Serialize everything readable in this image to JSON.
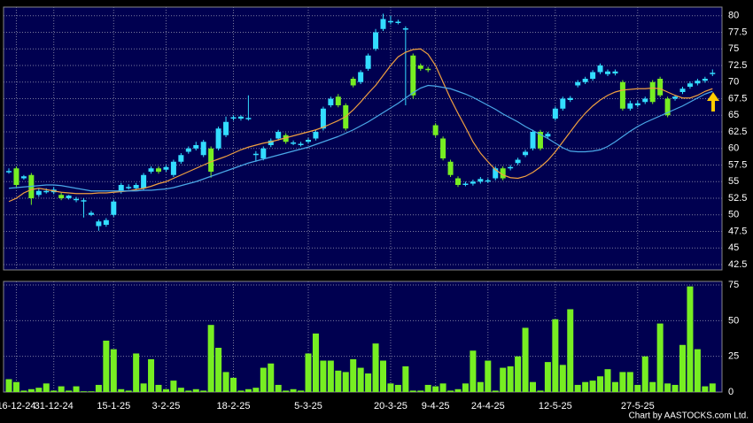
{
  "chart_data": [
    {
      "type": "candlestick",
      "categories": [
        null,
        "16-12-24",
        null,
        null,
        null,
        null,
        "31-12-24",
        null,
        null,
        null,
        null,
        null,
        null,
        null,
        "15-1-25",
        null,
        null,
        null,
        null,
        null,
        null,
        "3-2-25",
        null,
        null,
        null,
        null,
        null,
        null,
        null,
        null,
        "18-2-25",
        null,
        null,
        null,
        null,
        null,
        null,
        null,
        null,
        null,
        "5-3-25",
        null,
        null,
        null,
        null,
        null,
        null,
        null,
        null,
        null,
        null,
        "20-3-25",
        null,
        null,
        null,
        null,
        null,
        "9-4-25",
        null,
        null,
        null,
        null,
        null,
        null,
        "24-4-25",
        null,
        null,
        null,
        null,
        null,
        null,
        null,
        null,
        "12-5-25",
        null,
        null,
        null,
        null,
        null,
        null,
        null,
        null,
        null,
        null,
        "27-5-25",
        null,
        null,
        null,
        null,
        null,
        null,
        null,
        null,
        null,
        null
      ],
      "open": [
        56.5,
        57,
        55.5,
        56,
        53,
        53.4,
        53.4,
        53,
        52.5,
        52.2,
        52,
        50,
        48.3,
        48.5,
        50,
        53.5,
        54,
        54,
        54,
        56.5,
        57,
        56.8,
        56,
        58,
        59.5,
        60,
        59,
        60,
        60,
        62,
        64.5,
        64.5,
        64.5,
        59,
        58.5,
        60.5,
        61.5,
        62,
        60.8,
        60.5,
        61,
        61.5,
        63,
        66.5,
        67.8,
        66.5,
        70.5,
        70,
        72,
        75,
        78,
        79,
        79,
        78,
        74,
        72.5,
        72,
        63.5,
        61.5,
        58,
        55.5,
        54.5,
        54.7,
        55,
        55,
        55.5,
        57,
        57,
        57.8,
        59,
        60,
        62.5,
        61.8,
        64.5,
        66,
        67.3,
        69.5,
        70,
        70.5,
        71.5,
        71.2,
        71.3,
        70,
        66,
        66.5,
        67,
        70,
        70.5,
        67.5,
        67.5,
        68.5,
        69.3,
        69.8,
        70.2,
        71.2
      ],
      "high": [
        57,
        57.3,
        56,
        56.3,
        54,
        54,
        54.2,
        53.3,
        53,
        52.7,
        52.5,
        50.6,
        49.3,
        49.5,
        52.3,
        54.8,
        54.6,
        54.8,
        56.3,
        57.3,
        57.3,
        57.5,
        58.3,
        59.3,
        60.3,
        61,
        61.3,
        60.3,
        63.3,
        64.8,
        65,
        65,
        68,
        59.6,
        60.3,
        61.5,
        62.8,
        62.3,
        61.2,
        61,
        61.6,
        62.8,
        66.3,
        67.8,
        68.2,
        66.8,
        70.8,
        71.8,
        74.3,
        78,
        80.3,
        80,
        79.4,
        78.4,
        74.3,
        72.8,
        72.3,
        63.8,
        61.8,
        58.3,
        55.8,
        55,
        55.3,
        55.7,
        55.5,
        57.3,
        57.3,
        57.5,
        58.6,
        59.8,
        62.8,
        62.8,
        62.5,
        66.3,
        67.8,
        67.9,
        70.3,
        70.8,
        71.8,
        72.8,
        71.9,
        71.9,
        70.3,
        67.2,
        67.2,
        67.8,
        70.3,
        70.8,
        67.8,
        68,
        69.3,
        70.1,
        70.5,
        70.8,
        71.9
      ],
      "low": [
        56.2,
        54.2,
        55.3,
        51.5,
        52.7,
        53.2,
        53.1,
        52.2,
        52.3,
        51.9,
        49.6,
        49.8,
        47.6,
        48.2,
        49.7,
        53.2,
        53.8,
        53.7,
        53.7,
        56.2,
        56.2,
        56.5,
        55.7,
        57.7,
        59.2,
        59.7,
        58.7,
        55.6,
        59.7,
        61.7,
        64.2,
        64.2,
        64.2,
        58,
        58.2,
        60.2,
        61.2,
        60.7,
        60.5,
        60.3,
        60.7,
        61.2,
        62.7,
        66.2,
        66.2,
        62.7,
        69.2,
        69.7,
        71.7,
        74.7,
        77.7,
        78.7,
        78.7,
        66.5,
        67.5,
        71.7,
        71.5,
        61.7,
        58.2,
        55.7,
        54.2,
        54.3,
        54.4,
        54.7,
        54.8,
        55.2,
        55.2,
        56.7,
        57.5,
        58.7,
        59.7,
        59.7,
        61.5,
        64.2,
        65.7,
        67,
        69.2,
        69.7,
        70.2,
        71.2,
        70.9,
        71,
        65.7,
        65.7,
        66.2,
        66.7,
        66.7,
        67.7,
        64.7,
        67.2,
        68.2,
        69,
        69.5,
        69.9,
        70.9
      ],
      "close": [
        56.6,
        54.5,
        55.8,
        52.5,
        53.6,
        53.6,
        53.8,
        52.5,
        52.9,
        52.4,
        52.2,
        50.3,
        49,
        49.2,
        52,
        54.5,
        54.2,
        54.5,
        56,
        57,
        56.5,
        57.2,
        58,
        59,
        60,
        60.5,
        61,
        56.5,
        63,
        64,
        64.7,
        64.8,
        64.6,
        59.2,
        60,
        61.2,
        62.5,
        61,
        60.9,
        60.7,
        61.3,
        62.5,
        66,
        67.5,
        66.5,
        63,
        69.5,
        71.5,
        74,
        77.5,
        79.5,
        79.2,
        79.1,
        78.1,
        68,
        72,
        71.8,
        62,
        58.5,
        56,
        54.5,
        54.7,
        55,
        55.4,
        55.2,
        57,
        55.5,
        57.2,
        58.3,
        59.5,
        62.5,
        60,
        62.2,
        66,
        67.5,
        67.6,
        70,
        70.5,
        71.5,
        72.5,
        71.6,
        71.6,
        66,
        66.8,
        66.8,
        67.5,
        67,
        68,
        65,
        67.8,
        69,
        69.8,
        70.2,
        70.5,
        71.4
      ],
      "up_color": "#33ddff",
      "down_color": "#77ee22",
      "lines": [
        {
          "color": "#f0a040",
          "values": [
            52,
            52.5,
            53.3,
            53.8,
            54,
            53.8,
            53.6,
            53.4,
            53.3,
            53.2,
            53.2,
            53.2,
            53.3,
            53.3,
            53.4,
            53.5,
            53.6,
            53.8,
            54,
            54.3,
            54.7,
            55,
            55.5,
            56,
            56.5,
            57,
            57.5,
            58,
            58.4,
            58.8,
            59.3,
            59.8,
            60.2,
            60.5,
            60.8,
            61,
            61.3,
            61.6,
            61.9,
            62.2,
            62.5,
            62.8,
            63.2,
            63.7,
            64.2,
            64.8,
            65.8,
            67,
            68.3,
            69.5,
            71,
            72.5,
            73.8,
            74.5,
            74.9,
            75,
            74.2,
            72.5,
            70,
            67.5,
            65.3,
            63.2,
            61,
            59.3,
            58,
            56.8,
            56,
            55.6,
            55.5,
            55.8,
            56.4,
            57.2,
            58.2,
            59.5,
            61,
            62.5,
            64,
            65.3,
            66.4,
            67.3,
            68,
            68.5,
            68.8,
            68.9,
            69,
            69,
            69.1,
            69,
            68.5,
            68,
            67.6,
            67.6,
            68,
            68.6,
            69
          ]
        },
        {
          "color": "#4aa8e8",
          "values": [
            54,
            54.1,
            54.2,
            54.3,
            54.4,
            54.5,
            54.5,
            54.4,
            54.2,
            54,
            53.8,
            53.6,
            53.6,
            53.6,
            53.6,
            53.6,
            53.6,
            53.6,
            53.7,
            53.7,
            53.8,
            53.9,
            54.1,
            54.4,
            54.7,
            55,
            55.4,
            55.8,
            56.2,
            56.6,
            57,
            57.4,
            57.8,
            58.1,
            58.4,
            58.7,
            59,
            59.3,
            59.6,
            59.9,
            60.2,
            60.6,
            61,
            61.4,
            61.8,
            62.3,
            62.8,
            63.4,
            64,
            64.7,
            65.4,
            66.1,
            66.8,
            67.6,
            68.4,
            69.1,
            69.5,
            69.4,
            69.2,
            69,
            68.6,
            68.2,
            67.7,
            67.1,
            66.5,
            65.9,
            65.2,
            64.6,
            64,
            63.3,
            62.7,
            62.1,
            61.5,
            60.8,
            60.1,
            59.6,
            59.5,
            59.5,
            59.6,
            59.8,
            60.3,
            61,
            61.8,
            62.6,
            63.3,
            63.9,
            64.4,
            64.9,
            65.4,
            65.9,
            66.4,
            67,
            67.6,
            68.2,
            68.6
          ]
        }
      ],
      "ylim": [
        41.7,
        81.3
      ],
      "yticks": [
        42.5,
        45,
        47.5,
        50,
        52.5,
        55,
        57.5,
        60,
        62.5,
        65,
        67.5,
        70,
        72.5,
        75,
        77.5,
        80
      ],
      "grid": true
    },
    {
      "type": "bar",
      "values": [
        9,
        7,
        1,
        2,
        3,
        6,
        1,
        4,
        1,
        4,
        0.5,
        0.5,
        5,
        36,
        30,
        2,
        1,
        27,
        6,
        23,
        5,
        2,
        8,
        3,
        1,
        2,
        1,
        47,
        31,
        14,
        10,
        1,
        2,
        3,
        17,
        20,
        5,
        1,
        2,
        1,
        27,
        41,
        22,
        22,
        15,
        14,
        23,
        17,
        13,
        34,
        22,
        6,
        5,
        18,
        1,
        1,
        5,
        4,
        6,
        1,
        2,
        6,
        29,
        7,
        22,
        1,
        17,
        18,
        25,
        45,
        7,
        1,
        21,
        51,
        19,
        58,
        5,
        7,
        8,
        11,
        16,
        7,
        14,
        14,
        5,
        25,
        7,
        48,
        6,
        5,
        33,
        74,
        30,
        4,
        6
      ],
      "color": "#77ee22",
      "ylim": [
        0,
        77.5
      ],
      "yticks": [
        0,
        25,
        50,
        75
      ],
      "grid": true
    }
  ],
  "credit": "Chart by AASTOCKS.com Ltd."
}
